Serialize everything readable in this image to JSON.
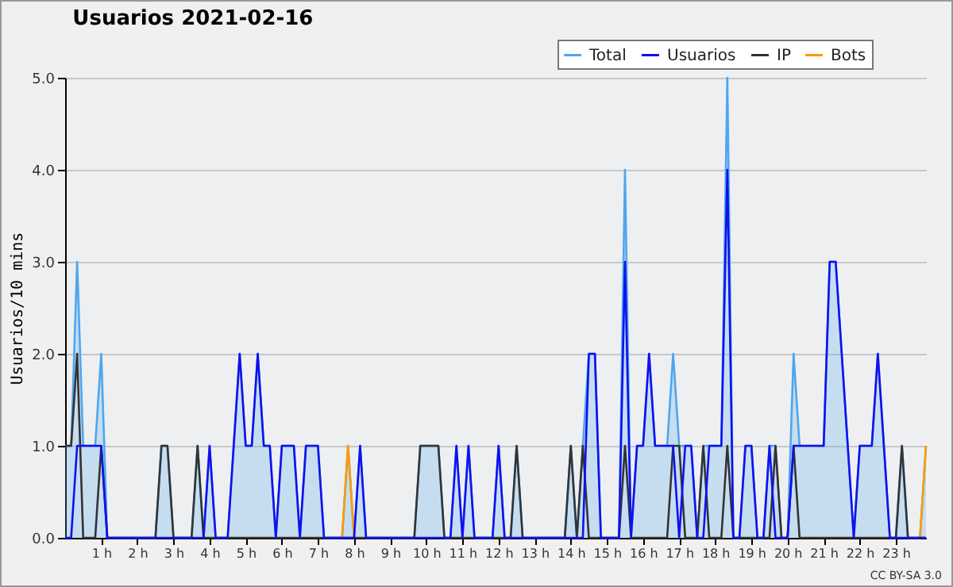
{
  "chart_data": {
    "type": "line",
    "title": "Usuarios  2021-02-16",
    "ylabel": "Usuarios/10 mins",
    "annotations": [
      "CC BY-SA 3.0"
    ],
    "x": [
      0,
      0.167,
      0.333,
      0.5,
      0.667,
      0.833,
      1,
      1.167,
      1.333,
      1.5,
      1.667,
      1.833,
      2,
      2.167,
      2.333,
      2.5,
      2.667,
      2.833,
      3,
      3.167,
      3.333,
      3.5,
      3.667,
      3.833,
      4,
      4.167,
      4.333,
      4.5,
      4.667,
      4.833,
      5,
      5.167,
      5.333,
      5.5,
      5.667,
      5.833,
      6,
      6.167,
      6.333,
      6.5,
      6.667,
      6.833,
      7,
      7.167,
      7.333,
      7.5,
      7.667,
      7.833,
      8,
      8.167,
      8.333,
      8.5,
      8.667,
      8.833,
      9,
      9.167,
      9.333,
      9.5,
      9.667,
      9.833,
      10,
      10.167,
      10.333,
      10.5,
      10.667,
      10.833,
      11,
      11.167,
      11.333,
      11.5,
      11.667,
      11.833,
      12,
      12.167,
      12.333,
      12.5,
      12.667,
      12.833,
      13,
      13.167,
      13.333,
      13.5,
      13.667,
      13.833,
      14,
      14.167,
      14.333,
      14.5,
      14.667,
      14.833,
      15,
      15.167,
      15.333,
      15.5,
      15.667,
      15.833,
      16,
      16.167,
      16.333,
      16.5,
      16.667,
      16.833,
      17,
      17.167,
      17.333,
      17.5,
      17.667,
      17.833,
      18,
      18.167,
      18.333,
      18.5,
      18.667,
      18.833,
      19,
      19.167,
      19.333,
      19.5,
      19.667,
      19.833,
      20,
      20.167,
      20.333,
      20.5,
      20.667,
      20.833,
      21,
      21.167,
      21.333,
      21.5,
      21.667,
      21.833,
      22,
      22.167,
      22.333,
      22.5,
      22.667,
      22.833,
      23,
      23.167,
      23.333,
      23.5,
      23.667,
      23.833
    ],
    "series": [
      {
        "name": "Total",
        "type": "area",
        "color": "#4ea6ef",
        "values": [
          1,
          1,
          3,
          1,
          1,
          1,
          2,
          0,
          0,
          0,
          0,
          0,
          0,
          0,
          0,
          0,
          1,
          1,
          0,
          0,
          0,
          0,
          1,
          0,
          1,
          0,
          0,
          0,
          1,
          2,
          1,
          1,
          2,
          1,
          1,
          0,
          1,
          1,
          1,
          0,
          1,
          1,
          1,
          0,
          0,
          0,
          0,
          1,
          0,
          1,
          0,
          0,
          0,
          0,
          0,
          0,
          0,
          0,
          0,
          1,
          1,
          1,
          1,
          0,
          0,
          1,
          0,
          1,
          0,
          0,
          0,
          0,
          1,
          0,
          0,
          1,
          0,
          0,
          0,
          0,
          0,
          0,
          0,
          0,
          1,
          0,
          1,
          2,
          2,
          0,
          0,
          0,
          0,
          4,
          0,
          1,
          1,
          2,
          1,
          1,
          1,
          2,
          1,
          1,
          1,
          0,
          1,
          1,
          1,
          1,
          5,
          0,
          0,
          1,
          1,
          0,
          0,
          1,
          1,
          0,
          0,
          2,
          1,
          1,
          1,
          1,
          1,
          3,
          3,
          2,
          1,
          0,
          1,
          1,
          1,
          2,
          1,
          0,
          0,
          1,
          0,
          0,
          0,
          1
        ]
      },
      {
        "name": "Usuarios",
        "type": "line",
        "color": "#1010f0",
        "values": [
          0,
          0,
          1,
          1,
          1,
          1,
          1,
          0,
          0,
          0,
          0,
          0,
          0,
          0,
          0,
          0,
          0,
          0,
          0,
          0,
          0,
          0,
          0,
          0,
          1,
          0,
          0,
          0,
          1,
          2,
          1,
          1,
          2,
          1,
          1,
          0,
          1,
          1,
          1,
          0,
          1,
          1,
          1,
          0,
          0,
          0,
          0,
          0,
          0,
          1,
          0,
          0,
          0,
          0,
          0,
          0,
          0,
          0,
          0,
          0,
          0,
          0,
          0,
          0,
          0,
          1,
          0,
          1,
          0,
          0,
          0,
          0,
          1,
          0,
          0,
          0,
          0,
          0,
          0,
          0,
          0,
          0,
          0,
          0,
          0,
          0,
          0,
          2,
          2,
          0,
          0,
          0,
          0,
          3,
          0,
          1,
          1,
          2,
          1,
          1,
          1,
          1,
          0,
          1,
          1,
          0,
          0,
          1,
          1,
          1,
          4,
          0,
          0,
          1,
          1,
          0,
          0,
          1,
          0,
          0,
          0,
          1,
          1,
          1,
          1,
          1,
          1,
          3,
          3,
          2,
          1,
          0,
          1,
          1,
          1,
          2,
          1,
          0,
          0,
          0,
          0,
          0,
          0,
          0
        ]
      },
      {
        "name": "IP",
        "type": "line",
        "color": "#333333",
        "values": [
          1,
          1,
          2,
          0,
          0,
          0,
          1,
          0,
          0,
          0,
          0,
          0,
          0,
          0,
          0,
          0,
          1,
          1,
          0,
          0,
          0,
          0,
          1,
          0,
          0,
          0,
          0,
          0,
          0,
          0,
          0,
          0,
          0,
          0,
          0,
          0,
          0,
          0,
          0,
          0,
          0,
          0,
          0,
          0,
          0,
          0,
          0,
          0,
          0,
          0,
          0,
          0,
          0,
          0,
          0,
          0,
          0,
          0,
          0,
          1,
          1,
          1,
          1,
          0,
          0,
          0,
          0,
          0,
          0,
          0,
          0,
          0,
          0,
          0,
          0,
          1,
          0,
          0,
          0,
          0,
          0,
          0,
          0,
          0,
          1,
          0,
          1,
          0,
          0,
          0,
          0,
          0,
          0,
          1,
          0,
          0,
          0,
          0,
          0,
          0,
          0,
          1,
          1,
          0,
          0,
          0,
          1,
          0,
          0,
          0,
          1,
          0,
          0,
          0,
          0,
          0,
          0,
          0,
          1,
          0,
          0,
          1,
          0,
          0,
          0,
          0,
          0,
          0,
          0,
          0,
          0,
          0,
          0,
          0,
          0,
          0,
          0,
          0,
          0,
          1,
          0,
          0,
          0,
          0
        ]
      },
      {
        "name": "Bots",
        "type": "line",
        "color": "#ff9a00",
        "values": [
          null,
          null,
          null,
          null,
          null,
          null,
          null,
          null,
          null,
          null,
          null,
          null,
          null,
          null,
          null,
          null,
          null,
          null,
          null,
          null,
          null,
          null,
          null,
          null,
          null,
          null,
          null,
          null,
          null,
          null,
          null,
          null,
          null,
          null,
          null,
          null,
          null,
          null,
          null,
          null,
          null,
          null,
          null,
          null,
          null,
          null,
          0,
          1,
          0,
          null,
          null,
          null,
          null,
          null,
          null,
          null,
          null,
          null,
          null,
          null,
          null,
          null,
          null,
          null,
          null,
          null,
          null,
          null,
          null,
          null,
          null,
          null,
          null,
          null,
          null,
          null,
          null,
          null,
          null,
          null,
          null,
          null,
          null,
          null,
          null,
          null,
          null,
          null,
          null,
          null,
          null,
          null,
          null,
          null,
          null,
          null,
          null,
          null,
          null,
          null,
          null,
          null,
          null,
          null,
          null,
          null,
          null,
          null,
          null,
          null,
          null,
          null,
          null,
          null,
          null,
          null,
          null,
          null,
          null,
          null,
          null,
          null,
          null,
          null,
          null,
          null,
          null,
          null,
          null,
          null,
          null,
          null,
          null,
          null,
          null,
          null,
          null,
          null,
          null,
          null,
          null,
          null,
          0,
          1
        ]
      }
    ],
    "xlim": [
      0,
      23.833
    ],
    "xticks": [
      {
        "value": 1,
        "label": "1 h"
      },
      {
        "value": 2,
        "label": "2 h"
      },
      {
        "value": 3,
        "label": "3 h"
      },
      {
        "value": 4,
        "label": "4 h"
      },
      {
        "value": 5,
        "label": "5 h"
      },
      {
        "value": 6,
        "label": "6 h"
      },
      {
        "value": 7,
        "label": "7 h"
      },
      {
        "value": 8,
        "label": "8 h"
      },
      {
        "value": 9,
        "label": "9 h"
      },
      {
        "value": 10,
        "label": "10 h"
      },
      {
        "value": 11,
        "label": "11 h"
      },
      {
        "value": 12,
        "label": "12 h"
      },
      {
        "value": 13,
        "label": "13 h"
      },
      {
        "value": 14,
        "label": "14 h"
      },
      {
        "value": 15,
        "label": "15 h"
      },
      {
        "value": 16,
        "label": "16 h"
      },
      {
        "value": 17,
        "label": "17 h"
      },
      {
        "value": 18,
        "label": "18 h"
      },
      {
        "value": 19,
        "label": "19 h"
      },
      {
        "value": 20,
        "label": "20 h"
      },
      {
        "value": 21,
        "label": "21 h"
      },
      {
        "value": 22,
        "label": "22 h"
      },
      {
        "value": 23,
        "label": "23 h"
      }
    ],
    "ylim": [
      0,
      5
    ],
    "yticks": [
      {
        "value": 0,
        "label": "0.0"
      },
      {
        "value": 1,
        "label": "1.0"
      },
      {
        "value": 2,
        "label": "2.0"
      },
      {
        "value": 3,
        "label": "3.0"
      },
      {
        "value": 4,
        "label": "4.0"
      },
      {
        "value": 5,
        "label": "5.0"
      }
    ],
    "grid": "y",
    "legend": "top right",
    "marker": "none",
    "line_style": "solid"
  }
}
